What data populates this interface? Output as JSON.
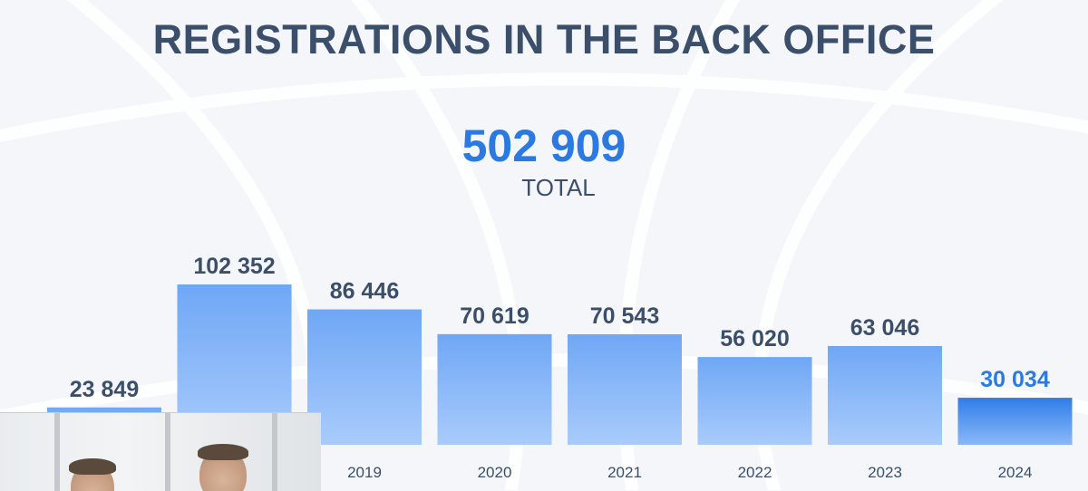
{
  "title": "REGISTRATIONS IN THE BACK OFFICE",
  "total": {
    "value": "502 909",
    "label": "TOTAL"
  },
  "colors": {
    "title": "#3b4f6b",
    "total": "#2a7ae2",
    "bar_top": "#6fa7f5",
    "bar_bottom": "#a9cbfb",
    "highlight_top": "#2f7de8",
    "highlight_bottom": "#8ab8f8",
    "highlight_label": "#2a7ae2",
    "label": "#3b4f6b",
    "year": "#3b4f6b"
  },
  "video_overlay": {
    "icon": "video-thumbnail-people"
  },
  "chart_data": {
    "type": "bar",
    "title": "REGISTRATIONS IN THE BACK OFFICE",
    "categories": [
      "",
      "",
      "2019",
      "2020",
      "2021",
      "2022",
      "2023",
      "2024"
    ],
    "values": [
      23849,
      102352,
      86446,
      70619,
      70543,
      56020,
      63046,
      30034
    ],
    "value_labels": [
      "23 849",
      "102 352",
      "86 446",
      "70 619",
      "70 543",
      "56 020",
      "63 046",
      "30 034"
    ],
    "highlight_index": 7,
    "xlabel": "",
    "ylabel": "",
    "grid": false,
    "legend": "none"
  }
}
